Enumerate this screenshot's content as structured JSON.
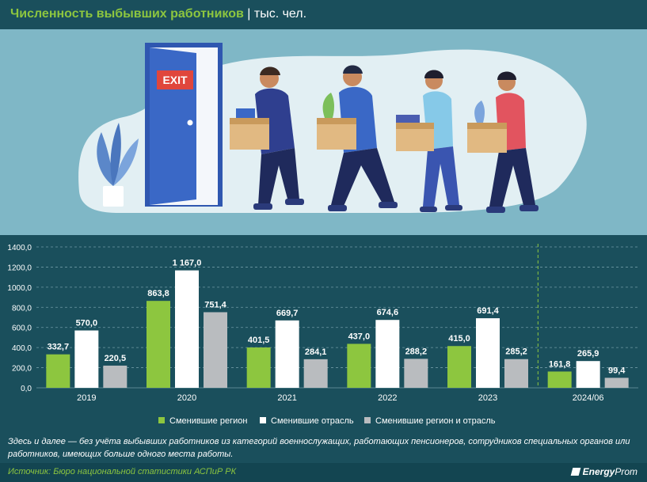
{
  "header": {
    "title_main": "Численность выбывших работников",
    "title_unit": " | тыс. чел."
  },
  "illustration": {
    "sign_text": "EXIT",
    "colors": {
      "background": "#7fb7c6",
      "blob": "#e2eff3",
      "door": "#3a68c6"
    }
  },
  "chart_data": {
    "type": "bar",
    "categories": [
      "2019",
      "2020",
      "2021",
      "2022",
      "2023",
      "2024/06"
    ],
    "series": [
      {
        "name": "Сменившие регион",
        "color": "#8dc63f",
        "values": [
          332.7,
          863.8,
          401.5,
          437.0,
          415.0,
          161.8
        ],
        "labels": [
          "332,7",
          "863,8",
          "401,5",
          "437,0",
          "415,0",
          "161,8"
        ]
      },
      {
        "name": "Сменившие отрасль",
        "color": "#ffffff",
        "values": [
          570.0,
          1167.0,
          669.7,
          674.6,
          691.4,
          265.9
        ],
        "labels": [
          "570,0",
          "1 167,0",
          "669,7",
          "674,6",
          "691,4",
          "265,9"
        ]
      },
      {
        "name": "Сменившие регион и отрасль",
        "color": "#b9bcbf",
        "values": [
          220.5,
          751.4,
          284.1,
          288.2,
          285.2,
          99.4
        ],
        "labels": [
          "220,5",
          "751,4",
          "284,1",
          "288,2",
          "285,2",
          "99,4"
        ]
      }
    ],
    "ylim": [
      0,
      1400
    ],
    "yticks": [
      0,
      200,
      400,
      600,
      800,
      1000,
      1200,
      1400
    ],
    "ytick_labels": [
      "0,0",
      "200,0",
      "400,0",
      "600,0",
      "800,0",
      "1000,0",
      "1200,0",
      "1400,0"
    ],
    "grid": "dashed horizontal",
    "separator_after_category": "2023",
    "legend_position": "bottom"
  },
  "note": "Здесь и далее — без учёта выбывших работников из категорий военнослужащих, работающих пенсионеров, сотрудников специальных органов или работников, имеющих больше одного места работы.",
  "footer": {
    "source": "Источник: Бюро национальной статистики АСПиР РК",
    "brand_part1": "Energy",
    "brand_part2": "Prom"
  }
}
